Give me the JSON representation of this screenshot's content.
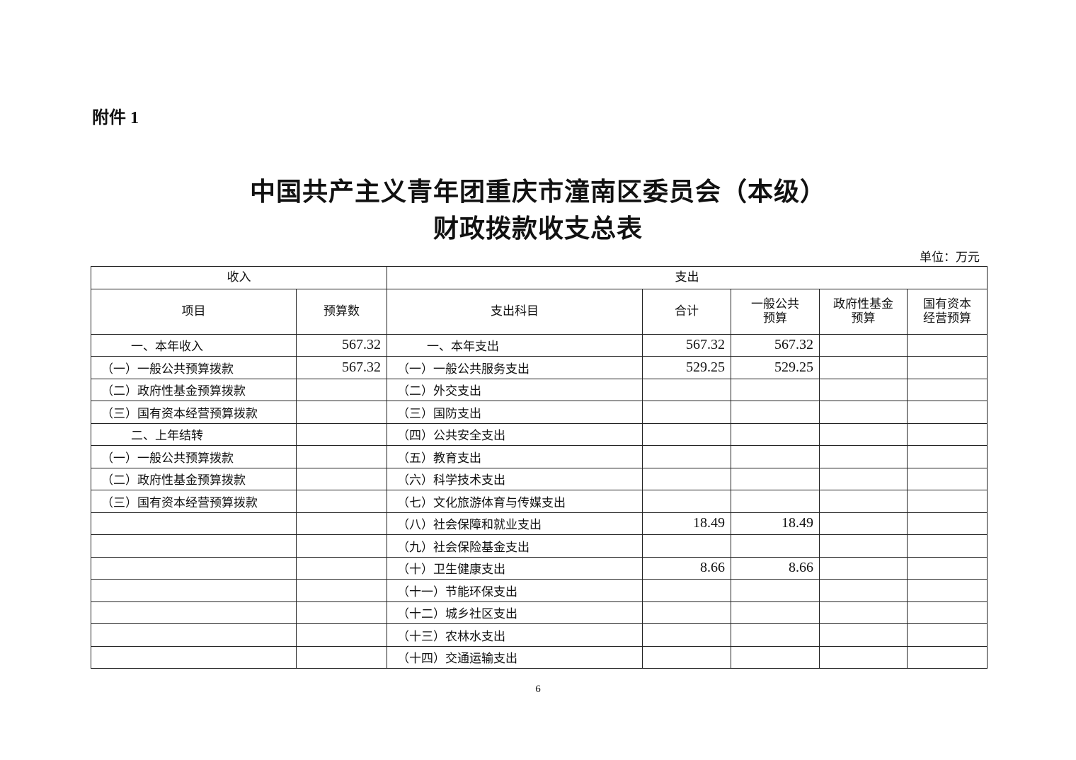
{
  "attachment_label": "附件 1",
  "title_line1": "中国共产主义青年团重庆市潼南区委员会（本级）",
  "title_line2": "财政拨款收支总表",
  "unit": "单位：万元",
  "headers": {
    "income": "收入",
    "expense": "支出",
    "item": "项目",
    "budget": "预算数",
    "expense_subject": "支出科目",
    "total": "合计",
    "general_public": "一般公共预算",
    "gov_fund": "政府性基金预算",
    "state_capital": "国有资本经营预算"
  },
  "rows": [
    {
      "in_item": "一、本年收入",
      "in_val": "567.32",
      "ex_item": "一、本年支出",
      "total": "567.32",
      "general": "567.32",
      "fund": "",
      "state": "",
      "indent": true
    },
    {
      "in_item": "（一）一般公共预算拨款",
      "in_val": "567.32",
      "ex_item": "（一）一般公共服务支出",
      "total": "529.25",
      "general": "529.25",
      "fund": "",
      "state": ""
    },
    {
      "in_item": "（二）政府性基金预算拨款",
      "in_val": "",
      "ex_item": "（二）外交支出",
      "total": "",
      "general": "",
      "fund": "",
      "state": ""
    },
    {
      "in_item": "（三）国有资本经营预算拨款",
      "in_val": "",
      "ex_item": "（三）国防支出",
      "total": "",
      "general": "",
      "fund": "",
      "state": ""
    },
    {
      "in_item": "二、上年结转",
      "in_val": "",
      "ex_item": "（四）公共安全支出",
      "total": "",
      "general": "",
      "fund": "",
      "state": "",
      "indent_in": true
    },
    {
      "in_item": "（一）一般公共预算拨款",
      "in_val": "",
      "ex_item": "（五）教育支出",
      "total": "",
      "general": "",
      "fund": "",
      "state": ""
    },
    {
      "in_item": "（二）政府性基金预算拨款",
      "in_val": "",
      "ex_item": "（六）科学技术支出",
      "total": "",
      "general": "",
      "fund": "",
      "state": ""
    },
    {
      "in_item": "（三）国有资本经营预算拨款",
      "in_val": "",
      "ex_item": "（七）文化旅游体育与传媒支出",
      "total": "",
      "general": "",
      "fund": "",
      "state": ""
    },
    {
      "in_item": "",
      "in_val": "",
      "ex_item": "（八）社会保障和就业支出",
      "total": "18.49",
      "general": "18.49",
      "fund": "",
      "state": ""
    },
    {
      "in_item": "",
      "in_val": "",
      "ex_item": "（九）社会保险基金支出",
      "total": "",
      "general": "",
      "fund": "",
      "state": ""
    },
    {
      "in_item": "",
      "in_val": "",
      "ex_item": "（十）卫生健康支出",
      "total": "8.66",
      "general": "8.66",
      "fund": "",
      "state": ""
    },
    {
      "in_item": "",
      "in_val": "",
      "ex_item": "（十一）节能环保支出",
      "total": "",
      "general": "",
      "fund": "",
      "state": ""
    },
    {
      "in_item": "",
      "in_val": "",
      "ex_item": "（十二）城乡社区支出",
      "total": "",
      "general": "",
      "fund": "",
      "state": ""
    },
    {
      "in_item": "",
      "in_val": "",
      "ex_item": "（十三）农林水支出",
      "total": "",
      "general": "",
      "fund": "",
      "state": ""
    },
    {
      "in_item": "",
      "in_val": "",
      "ex_item": "（十四）交通运输支出",
      "total": "",
      "general": "",
      "fund": "",
      "state": ""
    }
  ],
  "page_number": "6"
}
